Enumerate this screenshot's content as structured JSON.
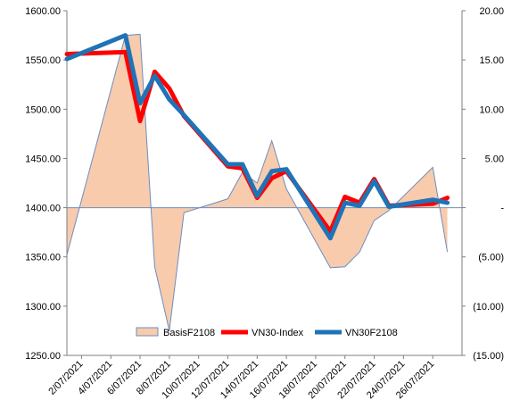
{
  "chart_data": {
    "type": "line",
    "title": "",
    "xlabel": "",
    "ylabel": "",
    "x_ticks": [
      "2/07/2021",
      "4/07/2021",
      "6/07/2021",
      "8/07/2021",
      "10/07/2021",
      "12/07/2021",
      "14/07/2021",
      "16/07/2021",
      "18/07/2021",
      "20/07/2021",
      "22/07/2021",
      "24/07/2021",
      "26/07/2021"
    ],
    "xlim": [
      "1/07/2021",
      "28/07/2021"
    ],
    "y_left": {
      "lim": [
        1250,
        1600
      ],
      "ticks": [
        "1250.00",
        "1300.00",
        "1350.00",
        "1400.00",
        "1450.00",
        "1500.00",
        "1550.00",
        "1600.00"
      ]
    },
    "y_right": {
      "lim": [
        -15,
        20
      ],
      "ticks": [
        "(15.00)",
        "(10.00)",
        "(5.00)",
        "-",
        "5.00",
        "10.00",
        "15.00",
        "20.00"
      ]
    },
    "grid": false,
    "legend_position": "bottom-center",
    "series": [
      {
        "name": "BasisF2108",
        "kind": "area",
        "axis": "right",
        "color": "#F8CBAD",
        "edge_color": "#6C8EBF",
        "points": [
          [
            "1/07/2021",
            -4.8
          ],
          [
            "5/07/2021",
            17.5
          ],
          [
            "6/07/2021",
            17.6
          ],
          [
            "7/07/2021",
            -6.0
          ],
          [
            "8/07/2021",
            -12.5
          ],
          [
            "9/07/2021",
            -0.5
          ],
          [
            "12/07/2021",
            0.9
          ],
          [
            "13/07/2021",
            3.6
          ],
          [
            "14/07/2021",
            2.5
          ],
          [
            "15/07/2021",
            6.8
          ],
          [
            "16/07/2021",
            1.9
          ],
          [
            "19/07/2021",
            -6.1
          ],
          [
            "20/07/2021",
            -6.0
          ],
          [
            "21/07/2021",
            -4.5
          ],
          [
            "22/07/2021",
            -1.3
          ],
          [
            "23/07/2021",
            -0.3
          ],
          [
            "26/07/2021",
            4.1
          ],
          [
            "27/07/2021",
            -4.5
          ]
        ]
      },
      {
        "name": "VN30-Index",
        "kind": "line",
        "axis": "left",
        "color": "#FF0000",
        "points": [
          [
            "1/07/2021",
            1556
          ],
          [
            "5/07/2021",
            1558
          ],
          [
            "6/07/2021",
            1488
          ],
          [
            "7/07/2021",
            1538
          ],
          [
            "8/07/2021",
            1521
          ],
          [
            "9/07/2021",
            1493
          ],
          [
            "12/07/2021",
            1442
          ],
          [
            "13/07/2021",
            1440
          ],
          [
            "14/07/2021",
            1410
          ],
          [
            "15/07/2021",
            1430
          ],
          [
            "16/07/2021",
            1437
          ],
          [
            "19/07/2021",
            1376
          ],
          [
            "20/07/2021",
            1411
          ],
          [
            "21/07/2021",
            1405
          ],
          [
            "22/07/2021",
            1429
          ],
          [
            "23/07/2021",
            1402
          ],
          [
            "26/07/2021",
            1404
          ],
          [
            "27/07/2021",
            1410
          ]
        ]
      },
      {
        "name": "VN30F2108",
        "kind": "line",
        "axis": "left",
        "color": "#1F73B7",
        "points": [
          [
            "1/07/2021",
            1551
          ],
          [
            "5/07/2021",
            1575
          ],
          [
            "6/07/2021",
            1506
          ],
          [
            "7/07/2021",
            1534
          ],
          [
            "8/07/2021",
            1510
          ],
          [
            "9/07/2021",
            1494
          ],
          [
            "12/07/2021",
            1444
          ],
          [
            "13/07/2021",
            1444
          ],
          [
            "14/07/2021",
            1412
          ],
          [
            "15/07/2021",
            1437
          ],
          [
            "16/07/2021",
            1439
          ],
          [
            "19/07/2021",
            1369
          ],
          [
            "20/07/2021",
            1405
          ],
          [
            "21/07/2021",
            1402
          ],
          [
            "22/07/2021",
            1427
          ],
          [
            "23/07/2021",
            1401
          ],
          [
            "26/07/2021",
            1408
          ],
          [
            "27/07/2021",
            1405
          ]
        ]
      }
    ]
  }
}
